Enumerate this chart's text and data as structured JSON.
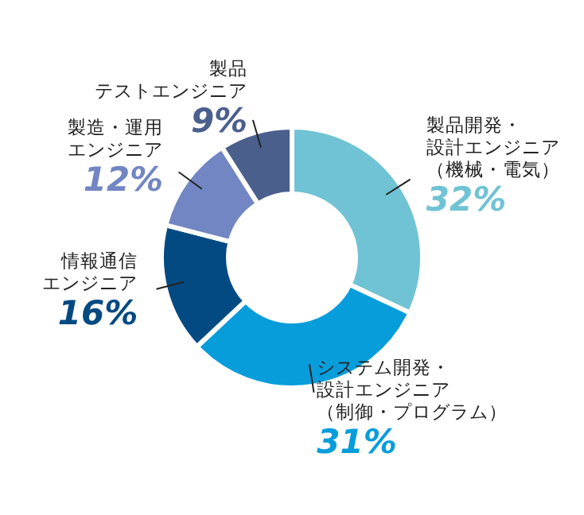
{
  "chart_data": {
    "type": "donut",
    "categories": [
      "製品開発・設計エンジニア（機械・電気）",
      "システム開発・設計エンジニア（制御・プログラム）",
      "情報通信エンジニア",
      "製造・運用エンジニア",
      "製品テストエンジニア"
    ],
    "values": [
      32,
      31,
      16,
      12,
      9
    ],
    "value_labels": [
      "32%",
      "31%",
      "16%",
      "12%",
      "9%"
    ],
    "colors": [
      "#6fc3d4",
      "#079ddb",
      "#034a82",
      "#7186c2",
      "#4a5f8c"
    ]
  }
}
